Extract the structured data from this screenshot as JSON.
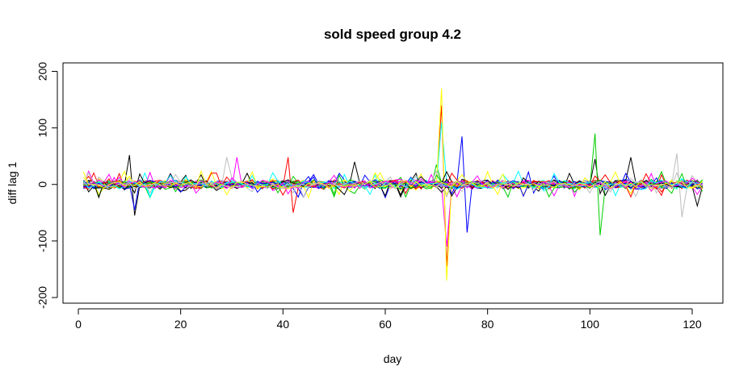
{
  "chart_data": {
    "type": "line",
    "title": "sold speed group 4.2",
    "xlabel": "day",
    "ylabel": "diff lag 1",
    "xlim": [
      -3,
      126
    ],
    "ylim": [
      -210,
      215
    ],
    "x_ticks": [
      0,
      20,
      40,
      60,
      80,
      100,
      120
    ],
    "y_ticks": [
      -200,
      -100,
      0,
      100,
      200
    ],
    "x_range": [
      1,
      122
    ],
    "grid": false,
    "legend": "none",
    "series_palette": [
      "#000000",
      "#ff0000",
      "#00cd00",
      "#0000ff",
      "#00ffff",
      "#ff00ff",
      "#ffff00",
      "#bebebe"
    ],
    "series_count": 40,
    "noise_amplitude": 6,
    "spikes": [
      {
        "x": 10,
        "y": 52,
        "color": "#000000"
      },
      {
        "x": 11,
        "y": -55,
        "color": "#000000"
      },
      {
        "x": 11,
        "y": -45,
        "color": "#0000ff"
      },
      {
        "x": 29,
        "y": 48,
        "color": "#bebebe"
      },
      {
        "x": 31,
        "y": 48,
        "color": "#ff00ff"
      },
      {
        "x": 41,
        "y": 48,
        "color": "#ff0000"
      },
      {
        "x": 42,
        "y": -50,
        "color": "#ff0000"
      },
      {
        "x": 54,
        "y": 40,
        "color": "#000000"
      },
      {
        "x": 70,
        "y": 35,
        "color": "#00cd00"
      },
      {
        "x": 71,
        "y": 170,
        "color": "#ffff00"
      },
      {
        "x": 71,
        "y": 140,
        "color": "#ff0000"
      },
      {
        "x": 71,
        "y": 110,
        "color": "#00ffff"
      },
      {
        "x": 72,
        "y": -170,
        "color": "#ffff00"
      },
      {
        "x": 72,
        "y": -145,
        "color": "#ff0000"
      },
      {
        "x": 72,
        "y": -110,
        "color": "#ff00ff"
      },
      {
        "x": 75,
        "y": 85,
        "color": "#0000ff"
      },
      {
        "x": 76,
        "y": -85,
        "color": "#0000ff"
      },
      {
        "x": 101,
        "y": 90,
        "color": "#00cd00"
      },
      {
        "x": 102,
        "y": -90,
        "color": "#00cd00"
      },
      {
        "x": 101,
        "y": 45,
        "color": "#000000"
      },
      {
        "x": 108,
        "y": 48,
        "color": "#000000"
      },
      {
        "x": 117,
        "y": 55,
        "color": "#bebebe"
      },
      {
        "x": 118,
        "y": -58,
        "color": "#bebebe"
      },
      {
        "x": 121,
        "y": -38,
        "color": "#000000"
      }
    ]
  }
}
